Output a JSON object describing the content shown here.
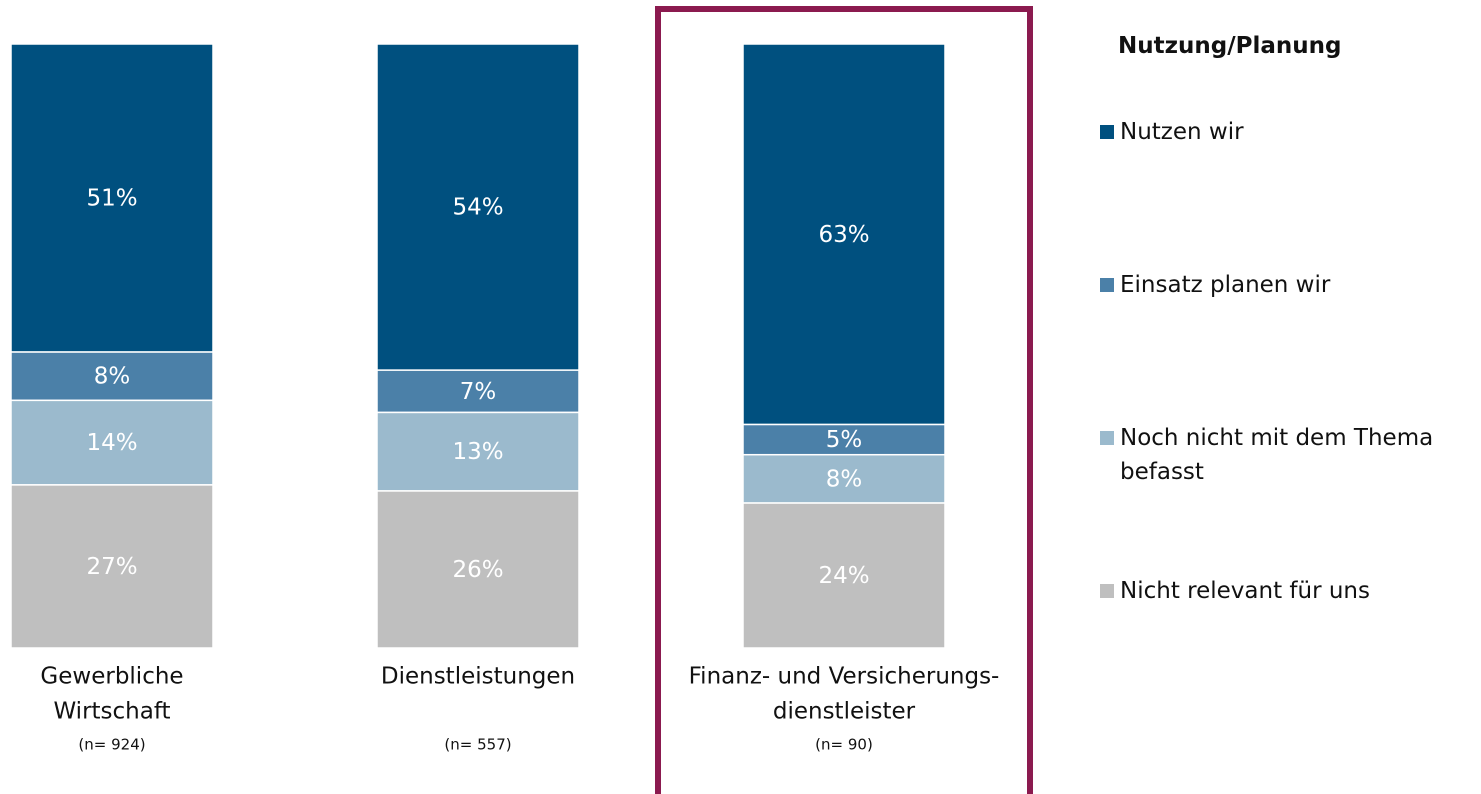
{
  "chart_data": {
    "type": "stacked_bar",
    "categories": [
      [
        "Gewerbliche",
        "Wirtschaft"
      ],
      [
        "Dienstleistungen"
      ],
      [
        "Finanz- und Versicherungs-",
        "dienstleister"
      ]
    ],
    "sample_sizes": [
      "(n= 924)",
      "(n= 557)",
      "(n= 90)"
    ],
    "legend_title": "Nutzung/Planung",
    "legend_position": "right",
    "highlight_category": 2,
    "highlight_color": "#8b1a4f",
    "series": [
      {
        "name": "Nutzen wir",
        "color": "#00507f",
        "values": [
          51,
          54,
          63
        ],
        "value_labels": [
          "51%",
          "54%",
          "63%"
        ]
      },
      {
        "name": "Einsatz planen wir",
        "color": "#4b80a8",
        "values": [
          8,
          7,
          5
        ],
        "value_labels": [
          "8%",
          "7%",
          "5%"
        ]
      },
      {
        "name": "Noch nicht mit dem Thema befasst",
        "color": "#9bbacd",
        "values": [
          14,
          13,
          8
        ],
        "value_labels": [
          "14%",
          "13%",
          "8%"
        ]
      },
      {
        "name": "Nicht relevant für uns",
        "color": "#bfbfbf",
        "values": [
          27,
          26,
          24
        ],
        "value_labels": [
          "27%",
          "26%",
          "24%"
        ]
      }
    ]
  }
}
